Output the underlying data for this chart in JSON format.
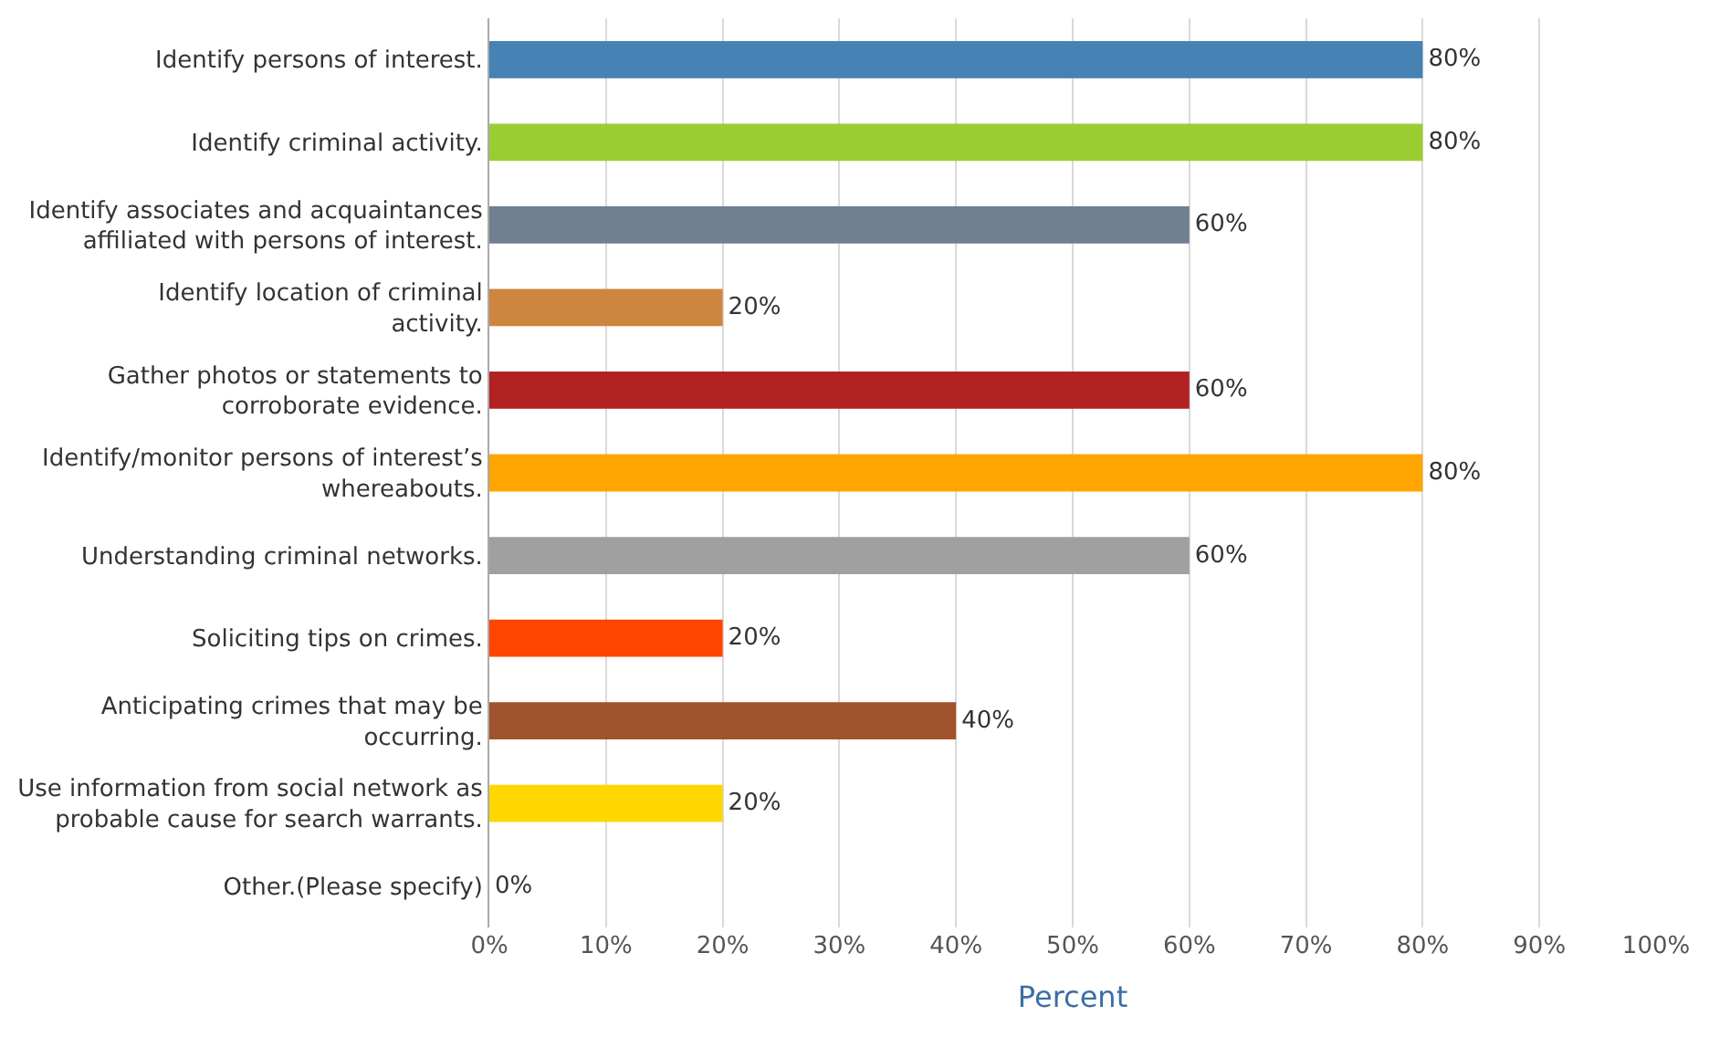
{
  "chart_data": {
    "type": "bar",
    "orientation": "horizontal",
    "xlabel": "Percent",
    "categories": [
      "Identify persons of interest.",
      "Identify criminal activity.",
      "Identify associates and acquaintances affiliated with persons of interest.",
      "Identify location of criminal activity.",
      "Gather photos or statements to corroborate evidence.",
      "Identify/monitor persons of interest’s whereabouts.",
      "Understanding criminal networks.",
      "Soliciting tips on crimes.",
      "Anticipating crimes that may be occurring.",
      "Use information from social network as probable cause for search warrants.",
      "Other.(Please specify)"
    ],
    "values": [
      80,
      80,
      60,
      20,
      60,
      80,
      60,
      20,
      40,
      20,
      0
    ],
    "value_labels": [
      "80%",
      "80%",
      "60%",
      "20%",
      "60%",
      "80%",
      "60%",
      "20%",
      "40%",
      "20%",
      "0%"
    ],
    "colors": [
      "#4682b4",
      "#9acd32",
      "#708090",
      "#cd853f",
      "#b22222",
      "#ffa500",
      "#a0a0a0",
      "#ff4500",
      "#a0522d",
      "#ffd700",
      "#cccccc"
    ],
    "xlim": [
      0,
      100
    ],
    "xticks": [
      {
        "value": 0,
        "label": "0%"
      },
      {
        "value": 10,
        "label": "10%"
      },
      {
        "value": 20,
        "label": "20%"
      },
      {
        "value": 30,
        "label": "30%"
      },
      {
        "value": 40,
        "label": "40%"
      },
      {
        "value": 50,
        "label": "50%"
      },
      {
        "value": 60,
        "label": "60%"
      },
      {
        "value": 70,
        "label": "70%"
      },
      {
        "value": 80,
        "label": "80%"
      },
      {
        "value": 90,
        "label": "90%"
      },
      {
        "value": 100,
        "label": "100%"
      }
    ],
    "grid": "x",
    "legend": false
  }
}
